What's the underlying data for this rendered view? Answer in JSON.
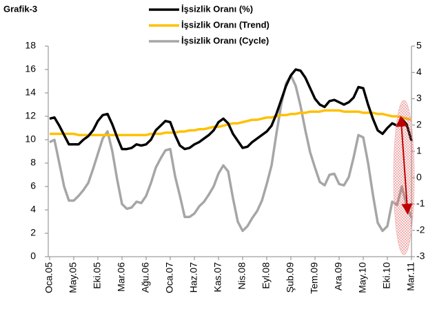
{
  "chart_data": {
    "type": "line",
    "title": "Grafik-3",
    "categories": [
      "Oca.05",
      null,
      null,
      null,
      null,
      "May.05",
      null,
      null,
      null,
      null,
      "Eki.05",
      null,
      null,
      null,
      null,
      "Mar.06",
      null,
      null,
      null,
      null,
      "Ağu.06",
      null,
      null,
      null,
      null,
      "Oca.07",
      null,
      null,
      null,
      null,
      "Haz.07",
      null,
      null,
      null,
      null,
      "Kas.07",
      null,
      null,
      null,
      null,
      "Nis.08",
      null,
      null,
      null,
      null,
      "Eyl.08",
      null,
      null,
      null,
      null,
      "Şub.09",
      null,
      null,
      null,
      null,
      "Tem.09",
      null,
      null,
      null,
      null,
      "Ara.09",
      null,
      null,
      null,
      null,
      "May.10",
      null,
      null,
      null,
      null,
      "Eki.10",
      null,
      null,
      null,
      null,
      "Mar.11"
    ],
    "series": [
      {
        "name": "İşsizlik Oranı (%)",
        "color": "#000000",
        "values": [
          11.8,
          11.9,
          11.2,
          10.4,
          9.6,
          9.6,
          9.6,
          10.0,
          10.3,
          10.8,
          11.6,
          12.1,
          12.2,
          11.3,
          10.2,
          9.2,
          9.2,
          9.3,
          9.6,
          9.5,
          9.6,
          10.0,
          10.8,
          11.2,
          11.6,
          11.5,
          10.4,
          9.5,
          9.2,
          9.3,
          9.6,
          9.8,
          10.1,
          10.4,
          10.8,
          11.5,
          11.8,
          11.4,
          10.5,
          9.9,
          9.3,
          9.4,
          9.8,
          10.1,
          10.4,
          10.7,
          11.2,
          12.2,
          13.4,
          14.6,
          15.5,
          16.0,
          15.9,
          15.3,
          14.4,
          13.5,
          13.0,
          12.8,
          13.3,
          13.4,
          13.2,
          13.0,
          13.2,
          13.6,
          14.5,
          14.4,
          13.0,
          11.8,
          10.8,
          10.5,
          11.0,
          11.4,
          11.2,
          11.8,
          11.3,
          9.9
        ]
      },
      {
        "name": "İşsizlik Oranı (Trend)",
        "color": "#ffc000",
        "values": [
          10.5,
          10.5,
          10.5,
          10.5,
          10.5,
          10.5,
          10.4,
          10.4,
          10.4,
          10.4,
          10.4,
          10.4,
          10.4,
          10.4,
          10.4,
          10.4,
          10.4,
          10.4,
          10.4,
          10.4,
          10.4,
          10.5,
          10.5,
          10.5,
          10.6,
          10.6,
          10.6,
          10.7,
          10.7,
          10.8,
          10.8,
          10.9,
          10.9,
          11.0,
          11.1,
          11.1,
          11.2,
          11.3,
          11.4,
          11.4,
          11.5,
          11.6,
          11.7,
          11.7,
          11.8,
          11.9,
          11.9,
          12.0,
          12.1,
          12.1,
          12.2,
          12.2,
          12.3,
          12.3,
          12.4,
          12.4,
          12.4,
          12.5,
          12.5,
          12.5,
          12.5,
          12.4,
          12.4,
          12.4,
          12.4,
          12.3,
          12.3,
          12.3,
          12.2,
          12.2,
          12.1,
          12.0,
          12.0,
          11.9,
          11.8,
          11.7
        ]
      },
      {
        "name": "İşsizlik Oranı (Cycle)",
        "color": "#a6a6a6",
        "axis": "y2",
        "values": [
          1.35,
          1.44,
          0.56,
          -0.33,
          -0.87,
          -0.87,
          -0.69,
          -0.47,
          -0.2,
          0.33,
          0.91,
          1.49,
          1.76,
          1.0,
          -0.07,
          -1.0,
          -1.18,
          -1.13,
          -0.91,
          -0.96,
          -0.69,
          -0.2,
          0.38,
          0.73,
          1.04,
          1.09,
          0.06,
          -0.69,
          -1.49,
          -1.49,
          -1.36,
          -1.09,
          -0.91,
          -0.64,
          -0.33,
          0.16,
          0.47,
          0.24,
          -0.78,
          -1.67,
          -2.02,
          -1.84,
          -1.53,
          -1.27,
          -0.87,
          -0.24,
          0.47,
          1.67,
          2.78,
          3.58,
          3.89,
          3.49,
          2.73,
          1.8,
          0.96,
          0.38,
          -0.16,
          -0.29,
          0.11,
          0.15,
          -0.24,
          -0.29,
          0.02,
          0.77,
          1.62,
          1.53,
          0.56,
          -0.64,
          -1.71,
          -2.02,
          -1.84,
          -0.91,
          -1.04,
          -0.33,
          -1.04,
          -1.53
        ]
      }
    ],
    "ylim": [
      0,
      18
    ],
    "yticks": [
      0,
      2,
      4,
      6,
      8,
      10,
      12,
      14,
      16,
      18
    ],
    "y2lim": [
      -3,
      5
    ],
    "y2ticks": [
      -3,
      -2,
      -1,
      0,
      1,
      2,
      3,
      4,
      5
    ],
    "grid": false,
    "legend": "top"
  }
}
